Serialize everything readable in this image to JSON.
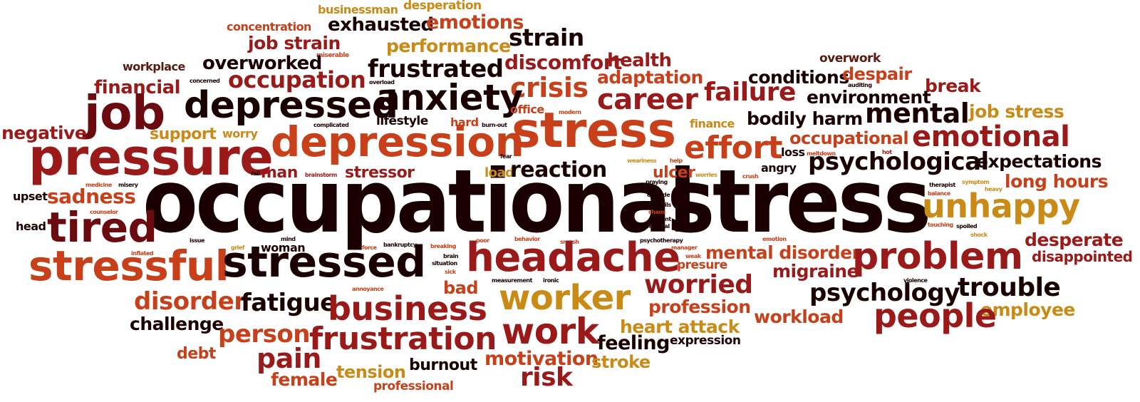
{
  "title_phrase": {
    "first": "occupational",
    "second": "stress"
  },
  "colors": {
    "black": "#1a0000",
    "dark_red": "#6b0a0f",
    "crimson": "#9a1a1a",
    "red_orange": "#c8401a",
    "orange": "#d06a1a",
    "gold": "#c98a16",
    "brown": "#5a1a10"
  },
  "words": {
    "businessman": "businessman",
    "desperation": "desperation",
    "concentration": "concentration",
    "exhausted": "exhausted",
    "emotions": "emotions",
    "job_strain": "job strain",
    "strain": "strain",
    "performance": "performance",
    "miserable": "miserable",
    "workplace": "workplace",
    "overworked": "overworked",
    "discomfort": "discomfort",
    "health": "health",
    "overwork": "overwork",
    "adaptation": "adaptation",
    "frustrated": "frustrated",
    "occupation": "occupation",
    "conditions": "conditions",
    "despair": "despair",
    "auditing": "auditing",
    "financial": "financial",
    "concerned": "concerned",
    "overload": "overload",
    "crisis": "crisis",
    "break": "break",
    "environment": "environment",
    "anxiety": "anxiety",
    "career": "career",
    "failure": "failure",
    "job": "job",
    "depressed": "depressed",
    "office": "office",
    "modern": "modern",
    "mental": "mental",
    "job_stress": "job stress",
    "lifestyle": "lifestyle",
    "bodily_harm": "bodily harm",
    "complicated": "complicated",
    "hard": "hard",
    "burn_out": "burn-out",
    "finance": "finance",
    "negative": "negative",
    "support": "support",
    "worry": "worry",
    "stress_mid": "stress",
    "occupational_small": "occupational",
    "emotional": "emotional",
    "depression": "depression",
    "effort": "effort",
    "pressure": "pressure",
    "loss": "loss",
    "meltdown": "meltdown",
    "weariness": "weariness",
    "help": "help",
    "fear": "fear",
    "hot": "hot",
    "psychological": "psychological",
    "expectations": "expectations",
    "fail": "fail",
    "man": "man",
    "brainstorm": "brainstorm",
    "stressor": "stressor",
    "load": "load",
    "reaction": "reaction",
    "ulcer": "ulcer",
    "worries": "worries",
    "crush": "crush",
    "angry": "angry",
    "medicine": "medicine",
    "misery": "misery",
    "praying": "praying",
    "therapist": "therapist",
    "symptom": "symptom",
    "long_hours": "long hours",
    "sadness": "sadness",
    "upset": "upset",
    "balance": "balance",
    "heavy": "heavy",
    "explode": "explode",
    "unhappy": "unhappy",
    "utensils": "utensils",
    "chaos": "chaos",
    "counselor": "counselor",
    "violent": "violent",
    "tired": "tired",
    "head": "head",
    "medical": "medical",
    "touching": "touching",
    "spoiled": "spoiled",
    "shock": "shock",
    "mind": "mind",
    "issue": "issue",
    "bankruptcy": "bankruptcy",
    "behavior": "behavior",
    "psychotherapy": "psychotherapy",
    "emotion": "emotion",
    "desperate": "desperate",
    "stressful": "stressful",
    "grief": "grief",
    "woman": "woman",
    "force": "force",
    "breaking": "breaking",
    "poor": "poor",
    "smash": "smash",
    "manager": "manager",
    "weak": "weak",
    "inflated": "inflated",
    "stressed": "stressed",
    "brain": "brain",
    "situation": "situation",
    "sick": "sick",
    "headache": "headache",
    "mental_disorder": "mental disorder",
    "presure": "presure",
    "problem": "problem",
    "disappointed": "disappointed",
    "migraine": "migraine",
    "ironic": "ironic",
    "measurement": "measurement",
    "violence": "violence",
    "annoyance": "annoyance",
    "bad": "bad",
    "worried": "worried",
    "psychology": "psychology",
    "trouble": "trouble",
    "disorder": "disorder",
    "fatigue": "fatigue",
    "worker": "worker",
    "business": "business",
    "profession": "profession",
    "employee": "employee",
    "workload": "workload",
    "people": "people",
    "challenge": "challenge",
    "heart_attack": "heart attack",
    "person": "person",
    "work": "work",
    "frustration": "frustration",
    "feeling": "feeling",
    "expression": "expression",
    "debt": "debt",
    "pain": "pain",
    "motivation": "motivation",
    "burnout": "burnout",
    "stroke": "stroke",
    "female": "female",
    "tension": "tension",
    "risk": "risk",
    "professional": "professional"
  }
}
